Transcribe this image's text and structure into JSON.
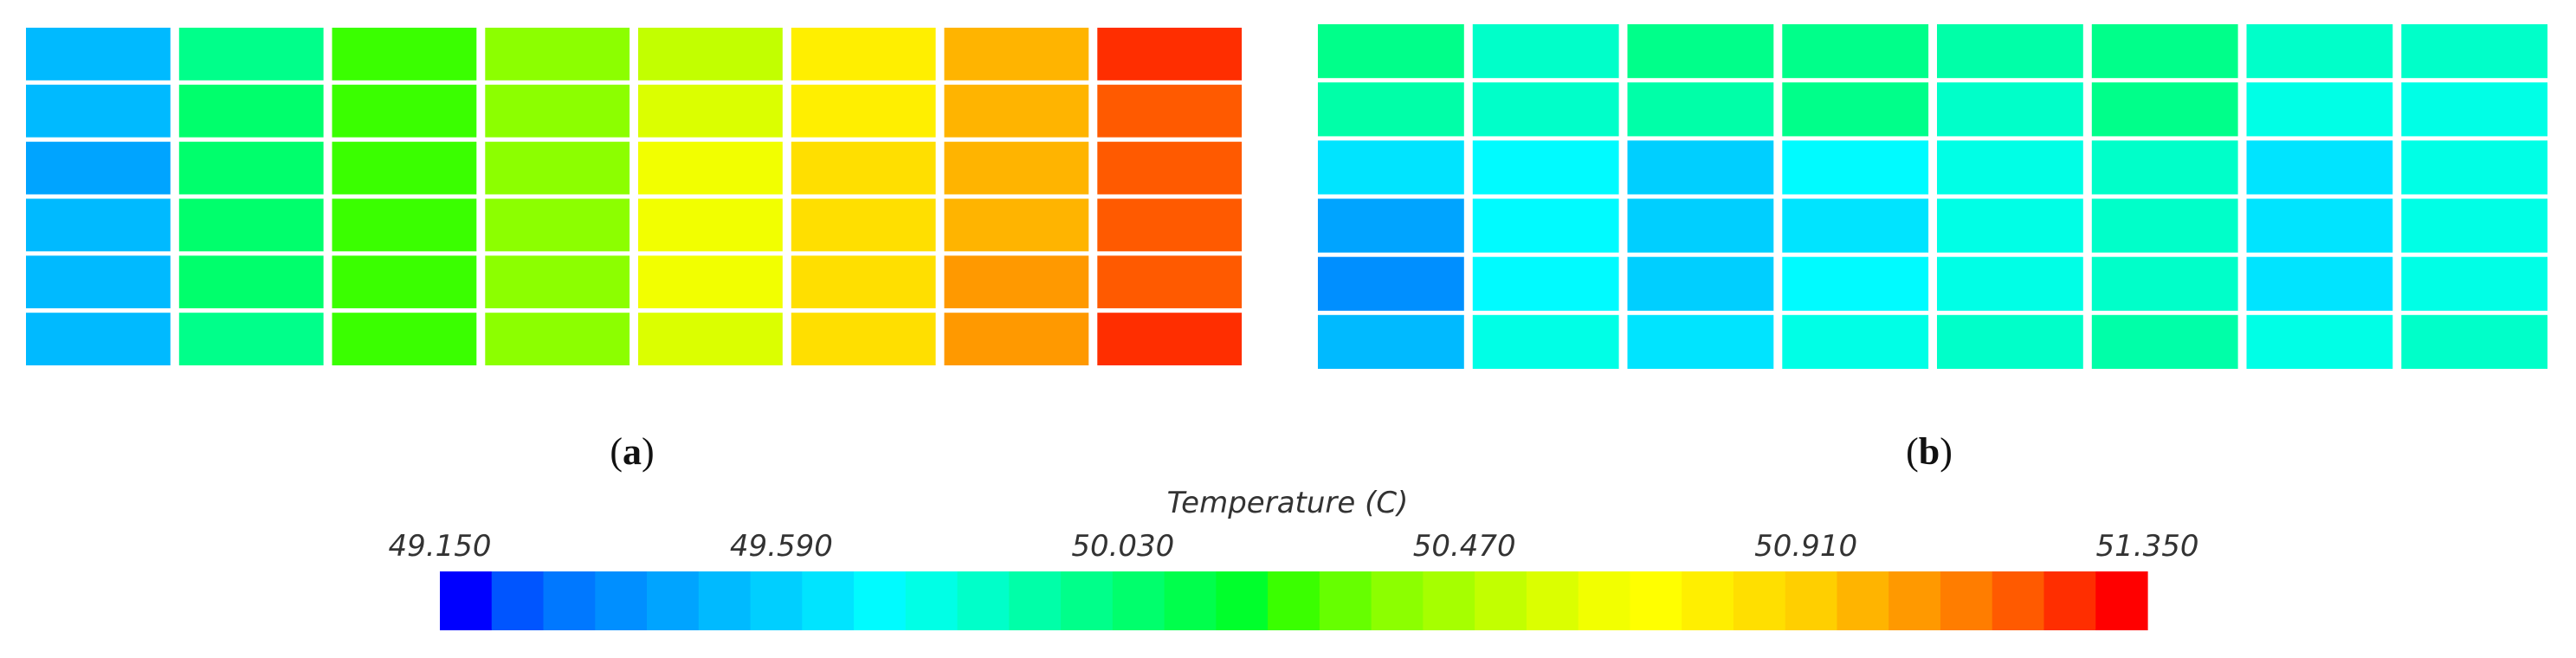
{
  "figure": {
    "panels": [
      {
        "id": "a",
        "label_open": "(",
        "label_letter": "a",
        "label_close": ")"
      },
      {
        "id": "b",
        "label_open": "(",
        "label_letter": "b",
        "label_close": ")"
      }
    ]
  },
  "chart_data": [
    {
      "type": "heatmap",
      "panel": "a",
      "rows": 6,
      "cols": 8,
      "values": [
        [
          49.55,
          50.0,
          50.23,
          50.35,
          50.55,
          50.78,
          50.95,
          51.22
        ],
        [
          49.5,
          50.02,
          50.26,
          50.38,
          50.58,
          50.8,
          50.97,
          51.2
        ],
        [
          49.48,
          50.04,
          50.28,
          50.4,
          50.62,
          50.82,
          50.99,
          51.18
        ],
        [
          49.5,
          50.03,
          50.28,
          50.4,
          50.63,
          50.84,
          51.01,
          51.18
        ],
        [
          49.52,
          50.02,
          50.26,
          50.38,
          50.62,
          50.83,
          51.02,
          51.2
        ],
        [
          49.5,
          50.01,
          50.25,
          50.37,
          50.6,
          50.82,
          51.02,
          51.25
        ]
      ]
    },
    {
      "type": "heatmap",
      "panel": "b",
      "rows": 6,
      "cols": 8,
      "values": [
        [
          49.98,
          49.85,
          49.96,
          49.98,
          49.92,
          49.98,
          49.82,
          49.85
        ],
        [
          49.93,
          49.82,
          49.92,
          49.95,
          49.88,
          49.96,
          49.78,
          49.8
        ],
        [
          49.68,
          49.72,
          49.6,
          49.7,
          49.78,
          49.88,
          49.68,
          49.78
        ],
        [
          49.45,
          49.7,
          49.58,
          49.68,
          49.76,
          49.86,
          49.66,
          49.76
        ],
        [
          49.4,
          49.72,
          49.6,
          49.7,
          49.78,
          49.88,
          49.68,
          49.78
        ],
        [
          49.5,
          49.78,
          49.66,
          49.75,
          49.82,
          49.92,
          49.75,
          49.82
        ]
      ]
    }
  ],
  "colorbar": {
    "title": "Temperature (C)",
    "min": 49.15,
    "max": 51.35,
    "ticks": [
      "49.150",
      "49.590",
      "50.030",
      "50.470",
      "50.910",
      "51.350"
    ],
    "colors": [
      "#0000ff",
      "#0055ff",
      "#0078ff",
      "#008fff",
      "#00a4ff",
      "#00baff",
      "#00cfff",
      "#00e4ff",
      "#00fbff",
      "#00ffe6",
      "#00ffc9",
      "#00ffa8",
      "#00ff8a",
      "#00ff6c",
      "#00ff4c",
      "#00ff2c",
      "#3aff00",
      "#66ff00",
      "#8cff00",
      "#a6ff00",
      "#c2ff00",
      "#dbff00",
      "#f2ff00",
      "#ffff00",
      "#ffef00",
      "#ffdf00",
      "#ffcf00",
      "#ffb400",
      "#ff9900",
      "#ff7d00",
      "#ff5a00",
      "#ff2e00",
      "#ff0000"
    ]
  }
}
